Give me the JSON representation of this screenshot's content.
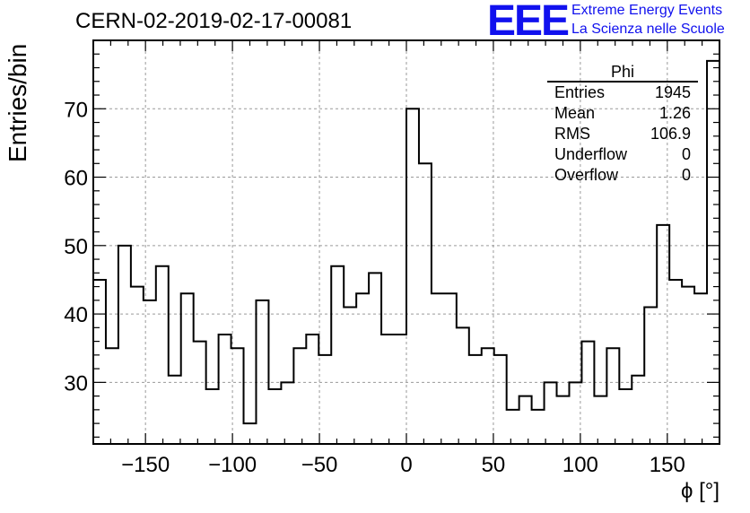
{
  "header": {
    "run_title": "CERN-02-2019-02-17-00081",
    "logo_mark": "EEE",
    "logo_line1": "Extreme Energy Events",
    "logo_line2": "La Scienza nelle Scuole"
  },
  "colors": {
    "logo": "#1111ee",
    "axis": "#000000",
    "grid": "#9a9a9a",
    "histogram": "#000000"
  },
  "stats": {
    "title": "Phi",
    "rows": [
      {
        "label": "Entries",
        "value": "1945"
      },
      {
        "label": "Mean",
        "value": "1.26"
      },
      {
        "label": "RMS",
        "value": "106.9"
      },
      {
        "label": "Underflow",
        "value": "0"
      },
      {
        "label": "Overflow",
        "value": "0"
      }
    ]
  },
  "chart_data": {
    "type": "bar",
    "style": "step-histogram",
    "title": "CERN-02-2019-02-17-00081",
    "xlabel": "ϕ [°]",
    "ylabel": "Entries/bin",
    "xlim": [
      -180,
      180
    ],
    "ylim": [
      21,
      80
    ],
    "bin_width": 7.2,
    "bin_edges_start": -180,
    "values": [
      45,
      35,
      50,
      44,
      42,
      47,
      31,
      43,
      36,
      29,
      37,
      35,
      24,
      42,
      29,
      30,
      35,
      37,
      34,
      47,
      41,
      43,
      46,
      37,
      37,
      70,
      62,
      43,
      43,
      38,
      34,
      35,
      34,
      26,
      28,
      26,
      30,
      28,
      30,
      36,
      28,
      35,
      29,
      31,
      41,
      53,
      45,
      44,
      43,
      77
    ],
    "x_ticks": [
      -150,
      -100,
      -50,
      0,
      50,
      100,
      150
    ],
    "x_tick_labels": [
      "−150",
      "−100",
      "−50",
      "0",
      "50",
      "100",
      "150"
    ],
    "y_ticks": [
      30,
      40,
      50,
      60,
      70
    ],
    "y_tick_labels": [
      "30",
      "40",
      "50",
      "60",
      "70"
    ],
    "grid": true,
    "legend": "stats box top-right"
  }
}
